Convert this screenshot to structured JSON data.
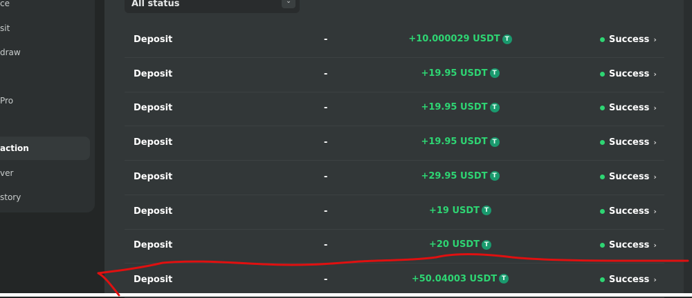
{
  "sidebar": {
    "items": [
      {
        "label": "ce"
      },
      {
        "label": "sit"
      },
      {
        "label": "draw"
      },
      {
        "label": "Pro"
      },
      {
        "label": "action",
        "active": true
      },
      {
        "label": "ver"
      },
      {
        "label": "story"
      }
    ]
  },
  "filter": {
    "value": "All status",
    "icon": "chevron-down-icon"
  },
  "transactions": [
    {
      "type": "Deposit",
      "address": "-",
      "amount": "+10.000029 USDT",
      "status": "Success"
    },
    {
      "type": "Deposit",
      "address": "-",
      "amount": "+19.95 USDT",
      "status": "Success"
    },
    {
      "type": "Deposit",
      "address": "-",
      "amount": "+19.95 USDT",
      "status": "Success"
    },
    {
      "type": "Deposit",
      "address": "-",
      "amount": "+19.95 USDT",
      "status": "Success"
    },
    {
      "type": "Deposit",
      "address": "-",
      "amount": "+29.95 USDT",
      "status": "Success"
    },
    {
      "type": "Deposit",
      "address": "-",
      "amount": "+19 USDT",
      "status": "Success"
    },
    {
      "type": "Deposit",
      "address": "-",
      "amount": "+20 USDT",
      "status": "Success"
    },
    {
      "type": "Deposit",
      "address": "-",
      "amount": "+50.04003 USDT",
      "status": "Success"
    }
  ],
  "colors": {
    "accent": "#2ed573",
    "annotation": "#e01010",
    "panel": "#323738"
  }
}
